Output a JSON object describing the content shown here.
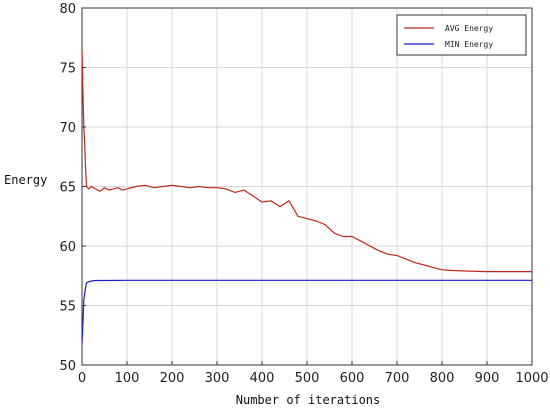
{
  "chart_data": {
    "type": "line",
    "title": "",
    "xlabel": "Number of iterations",
    "ylabel": "Energy",
    "xlim": [
      0,
      1000
    ],
    "ylim": [
      50,
      80
    ],
    "xticks": [
      0,
      100,
      200,
      300,
      400,
      500,
      600,
      700,
      800,
      900,
      1000
    ],
    "yticks": [
      50,
      55,
      60,
      65,
      70,
      75,
      80
    ],
    "grid": true,
    "legend_position": "top-right",
    "series": [
      {
        "name": "AVG Energy",
        "color": "#c0281c",
        "x": [
          0,
          2,
          4,
          6,
          8,
          10,
          15,
          20,
          30,
          40,
          50,
          60,
          70,
          80,
          90,
          100,
          120,
          140,
          160,
          180,
          200,
          220,
          240,
          260,
          280,
          300,
          320,
          340,
          360,
          380,
          400,
          420,
          440,
          460,
          480,
          500,
          520,
          540,
          560,
          580,
          600,
          620,
          640,
          660,
          680,
          700,
          720,
          740,
          760,
          780,
          800,
          820,
          850,
          900,
          950,
          1000
        ],
        "y": [
          76.5,
          73.0,
          70.0,
          68.5,
          66.5,
          65.0,
          64.8,
          65.0,
          64.8,
          64.6,
          64.9,
          64.7,
          64.8,
          64.9,
          64.7,
          64.8,
          65.0,
          65.1,
          64.9,
          65.0,
          65.1,
          65.0,
          64.9,
          65.0,
          64.9,
          64.9,
          64.8,
          64.5,
          64.7,
          64.2,
          63.7,
          63.8,
          63.3,
          63.8,
          62.5,
          62.3,
          62.1,
          61.8,
          61.1,
          60.8,
          60.8,
          60.4,
          60.0,
          59.6,
          59.3,
          59.2,
          58.9,
          58.6,
          58.4,
          58.2,
          58.0,
          57.95,
          57.9,
          57.85,
          57.85,
          57.85
        ]
      },
      {
        "name": "MIN Energy",
        "color": "#1a1ad0",
        "x": [
          0,
          2,
          4,
          6,
          8,
          10,
          15,
          20,
          30,
          50,
          100,
          200,
          400,
          600,
          800,
          1000
        ],
        "y": [
          51.8,
          53.5,
          55.5,
          56.0,
          56.5,
          56.9,
          57.0,
          57.05,
          57.1,
          57.1,
          57.12,
          57.12,
          57.12,
          57.12,
          57.12,
          57.12
        ]
      }
    ]
  }
}
